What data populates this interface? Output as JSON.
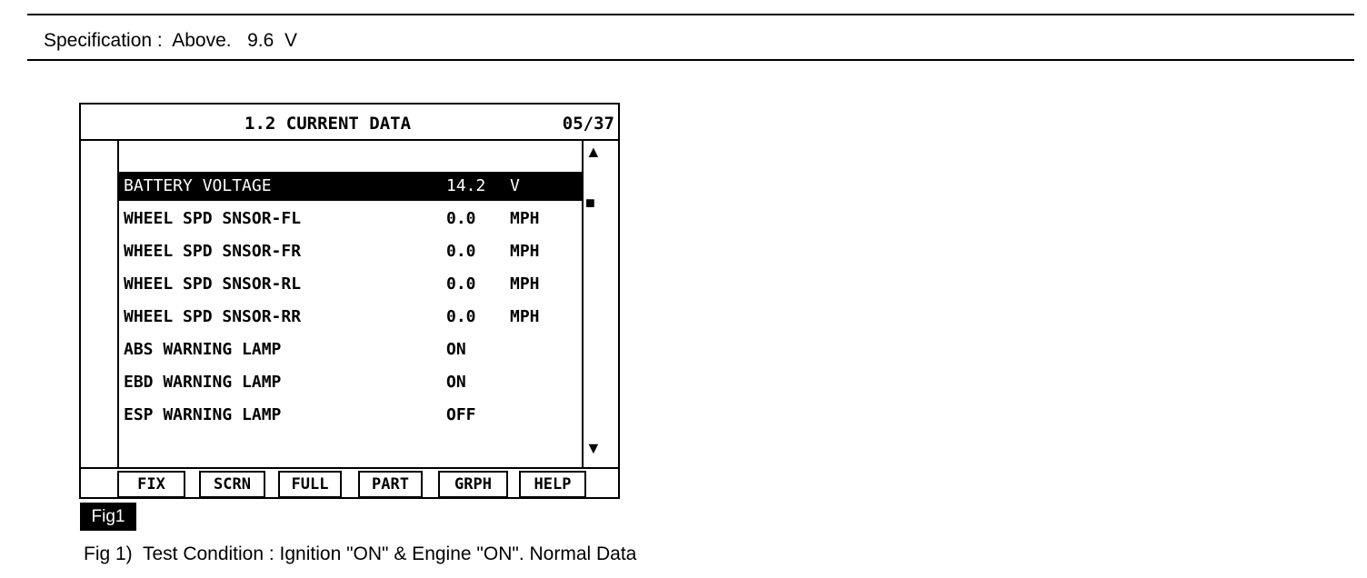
{
  "specification": "Specification :  Above.   9.6  V",
  "screen": {
    "title": "1.2 CURRENT DATA",
    "page": "05/37",
    "rows": [
      {
        "name": "BATTERY VOLTAGE",
        "value": "14.2",
        "unit": "V",
        "selected": true
      },
      {
        "name": "WHEEL SPD SNSOR-FL",
        "value": "0.0",
        "unit": "MPH"
      },
      {
        "name": "WHEEL SPD SNSOR-FR",
        "value": "0.0",
        "unit": "MPH"
      },
      {
        "name": "WHEEL SPD SNSOR-RL",
        "value": "0.0",
        "unit": "MPH"
      },
      {
        "name": "WHEEL SPD SNSOR-RR",
        "value": "0.0",
        "unit": "MPH"
      },
      {
        "name": "ABS WARNING LAMP",
        "value": "ON",
        "unit": ""
      },
      {
        "name": "EBD WARNING LAMP",
        "value": "ON",
        "unit": ""
      },
      {
        "name": "ESP WARNING LAMP",
        "value": "OFF",
        "unit": ""
      }
    ],
    "buttons": [
      "FIX",
      "SCRN",
      "FULL",
      "PART",
      "GRPH",
      "HELP"
    ],
    "scroll_up": "▲",
    "scroll_thumb": "■",
    "scroll_down": "▼"
  },
  "fig_label": "Fig1",
  "caption": "Fig 1)  Test Condition : Ignition \"ON\" & Engine \"ON\". Normal Data"
}
